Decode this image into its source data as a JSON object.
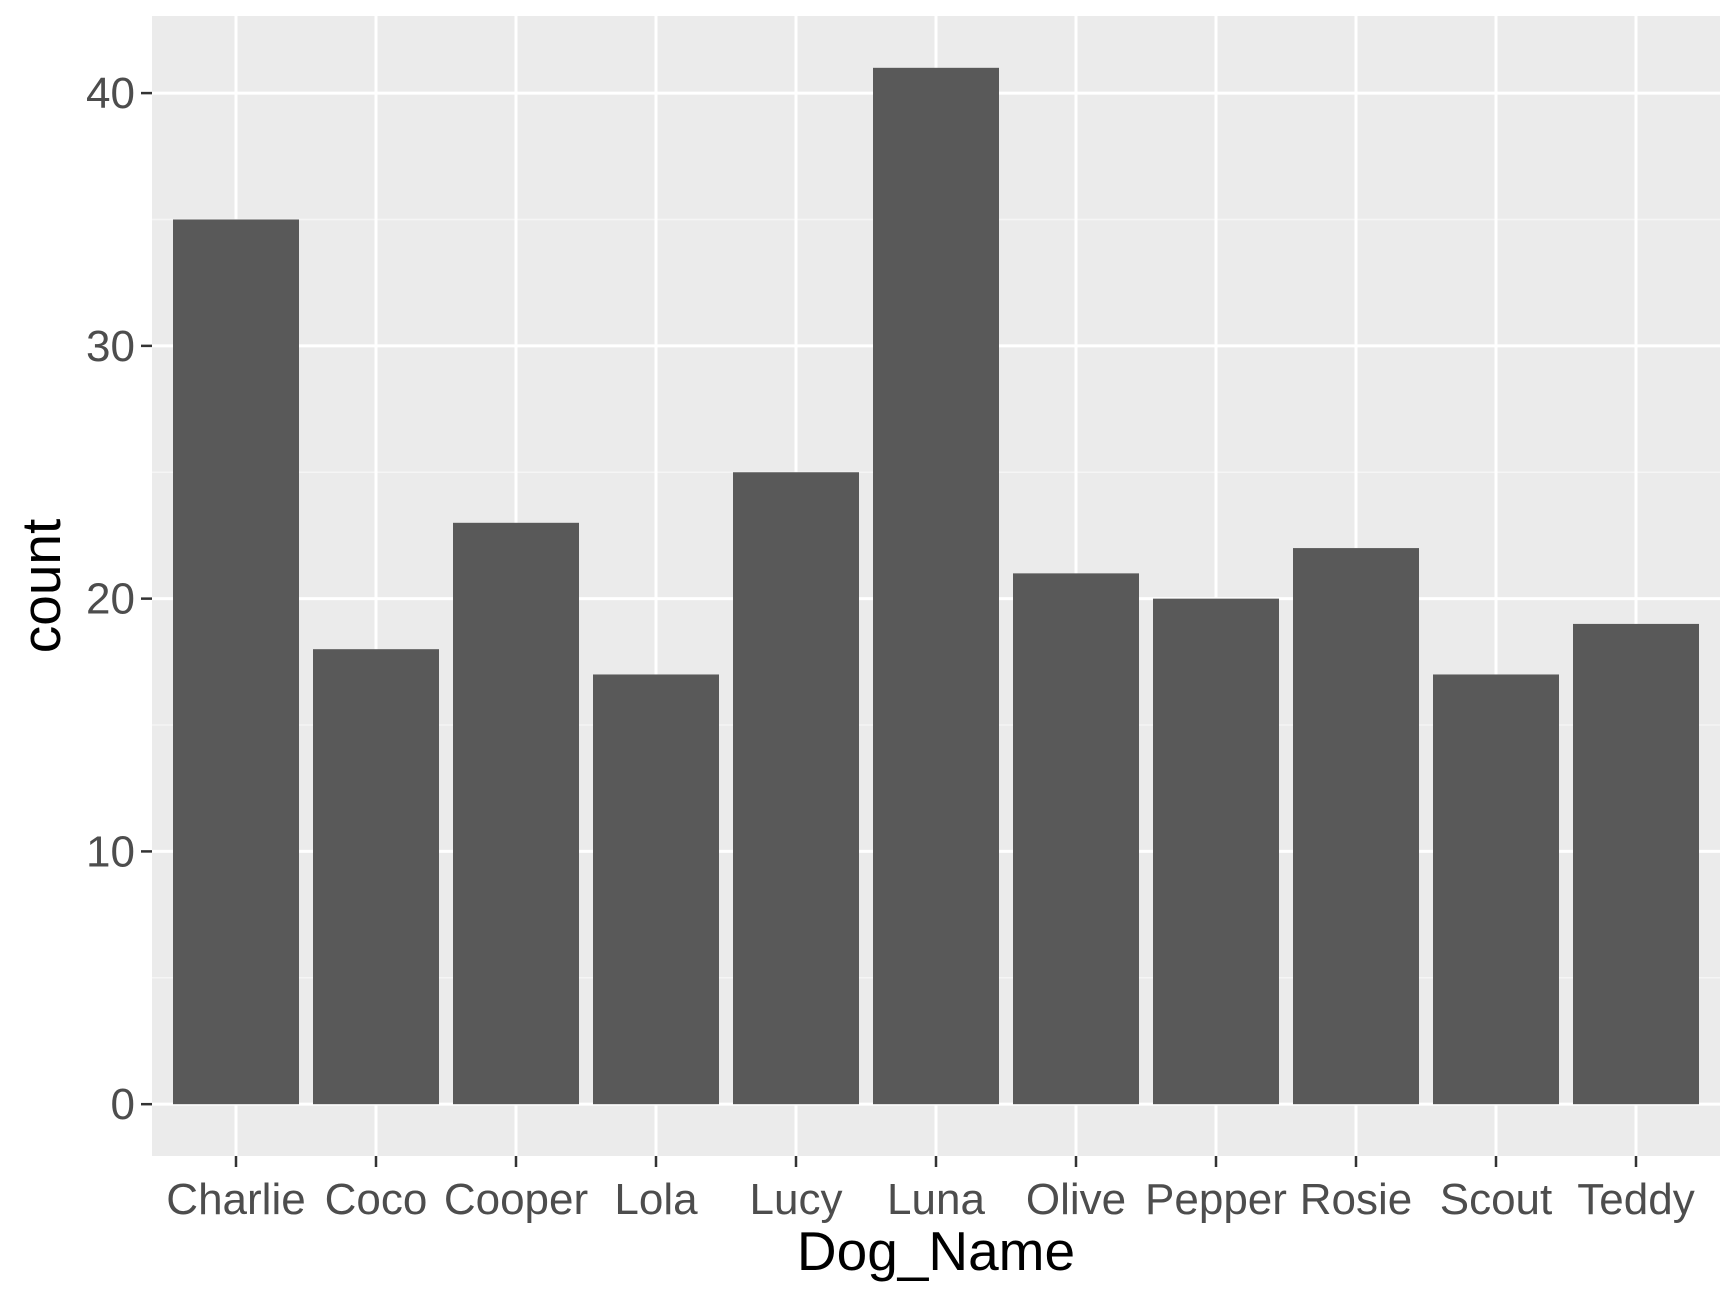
{
  "chart_data": {
    "type": "bar",
    "title": "",
    "xlabel": "Dog_Name",
    "ylabel": "count",
    "categories": [
      "Charlie",
      "Coco",
      "Cooper",
      "Lola",
      "Lucy",
      "Luna",
      "Olive",
      "Pepper",
      "Rosie",
      "Scout",
      "Teddy"
    ],
    "values": [
      35,
      18,
      23,
      17,
      25,
      41,
      21,
      20,
      22,
      17,
      19
    ],
    "ylim": [
      -2.05,
      43.05
    ],
    "yticks": [
      0,
      10,
      20,
      30,
      40
    ],
    "grid": true,
    "legend": "none",
    "colors": {
      "bar": "#595959",
      "panel_background": "#ebebeb",
      "grid_major": "#ffffff",
      "grid_minor": "#f5f5f5",
      "tick_text": "#4d4d4d",
      "tick_mark": "#333333",
      "title_text": "#000000"
    }
  }
}
